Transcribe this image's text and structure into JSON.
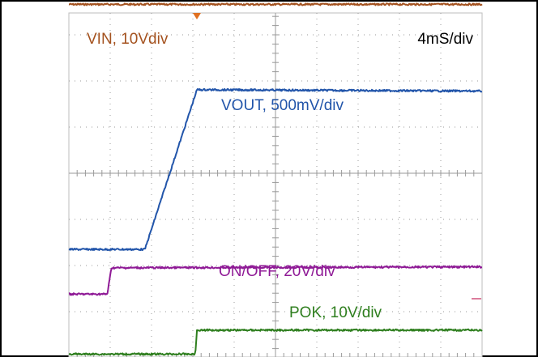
{
  "chart_data": {
    "type": "line",
    "title": "",
    "xlabel": "",
    "ylabel": "",
    "grid": true,
    "divisions": {
      "x": 10,
      "y": 8
    },
    "xlim": [
      0,
      10
    ],
    "ylim": [
      0,
      8
    ],
    "timebase_label": "4mS/div",
    "series": [
      {
        "name": "VIN, 10Vdiv",
        "color": "#a4521f",
        "points": [
          [
            0,
            7.66
          ],
          [
            10,
            7.66
          ]
        ]
      },
      {
        "name": "VOUT, 500mV/div",
        "color": "#2255aa",
        "points": [
          [
            0,
            2.35
          ],
          [
            1.84,
            2.35
          ],
          [
            3.1,
            5.81
          ],
          [
            10,
            5.78
          ]
        ]
      },
      {
        "name": "ON/OFF, 20V/div",
        "color": "#8f1a96",
        "points": [
          [
            0,
            1.38
          ],
          [
            0.93,
            1.38
          ],
          [
            1.03,
            1.95
          ],
          [
            10,
            1.97
          ]
        ]
      },
      {
        "name": "POK, 10V/div",
        "color": "#2f7f1f",
        "points": [
          [
            0,
            0.08
          ],
          [
            3.06,
            0.08
          ],
          [
            3.1,
            0.6
          ],
          [
            10,
            0.6
          ]
        ]
      }
    ],
    "markers": {
      "trigger_marker_color": "#e07020",
      "level_marker_color": "#d0507a"
    }
  }
}
